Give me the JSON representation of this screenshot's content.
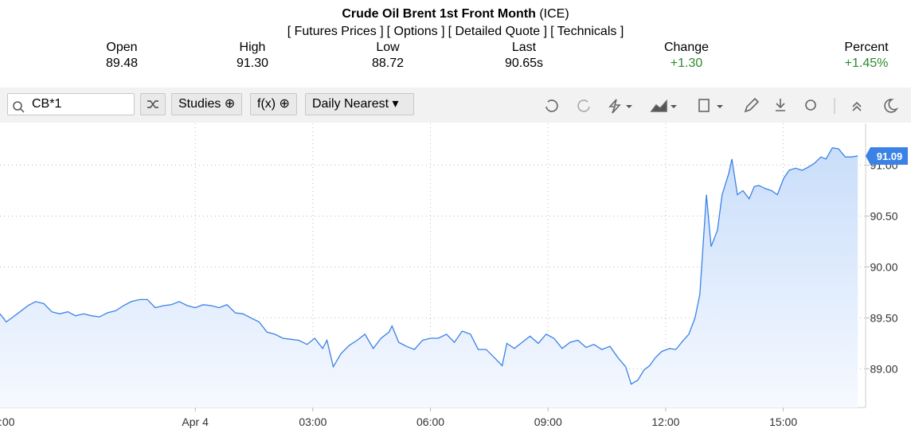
{
  "header": {
    "title": "Crude Oil Brent 1st Front Month",
    "exchange": "(ICE)",
    "links": [
      "[ Futures Prices ]",
      "[ Options ]",
      "[ Detailed Quote ]",
      "[ Technicals ]"
    ],
    "quote": [
      {
        "label": "Open",
        "value": "89.48"
      },
      {
        "label": "High",
        "value": "91.30"
      },
      {
        "label": "Low",
        "value": "88.72"
      },
      {
        "label": "Last",
        "value": "90.65s"
      },
      {
        "label": "Change",
        "value": "+1.30"
      },
      {
        "label": "Percent",
        "value": "+1.45%"
      }
    ]
  },
  "toolbar": {
    "symbol": "CB*1",
    "studies": "Studies",
    "fx": "f(x)",
    "period": "Daily Nearest"
  },
  "chart_data": {
    "type": "area",
    "color": "#3b82e6",
    "grid": true,
    "price_tag": 91.09,
    "xlim": [
      -4.98,
      17.1
    ],
    "ylim": [
      88.62,
      91.41
    ],
    "xticks": [
      {
        "value": -5,
        "label": ":00"
      },
      {
        "value": 0,
        "label": "Apr 4"
      },
      {
        "value": 3,
        "label": "03:00"
      },
      {
        "value": 6,
        "label": "06:00"
      },
      {
        "value": 9,
        "label": "09:00"
      },
      {
        "value": 12,
        "label": "12:00"
      },
      {
        "value": 15,
        "label": "15:00"
      }
    ],
    "yticks": [
      {
        "value": 89,
        "label": "89.00"
      },
      {
        "value": 89.5,
        "label": "89.50"
      },
      {
        "value": 90,
        "label": "90.00"
      },
      {
        "value": 90.5,
        "label": "90.50"
      },
      {
        "value": 91,
        "label": "91.00"
      }
    ],
    "x": [
      -4.98,
      -4.82,
      -4.68,
      -4.47,
      -4.27,
      -4.07,
      -3.86,
      -3.66,
      -3.46,
      -3.25,
      -3.05,
      -2.85,
      -2.64,
      -2.44,
      -2.24,
      -2.03,
      -1.83,
      -1.63,
      -1.42,
      -1.22,
      -1.02,
      -0.81,
      -0.61,
      -0.41,
      -0.2,
      0,
      0.2,
      0.41,
      0.61,
      0.81,
      1.02,
      1.22,
      1.42,
      1.63,
      1.83,
      2.03,
      2.24,
      2.44,
      2.64,
      2.85,
      3.05,
      3.25,
      3.36,
      3.52,
      3.72,
      3.93,
      4.13,
      4.33,
      4.54,
      4.74,
      4.94,
      5.02,
      5.19,
      5.39,
      5.59,
      5.8,
      6,
      6.2,
      6.41,
      6.61,
      6.81,
      7.02,
      7.22,
      7.42,
      7.63,
      7.83,
      7.95,
      8.14,
      8.34,
      8.54,
      8.75,
      8.95,
      9.15,
      9.36,
      9.56,
      9.76,
      9.97,
      10.17,
      10.37,
      10.58,
      10.78,
      10.98,
      11.12,
      11.29,
      11.45,
      11.59,
      11.74,
      11.9,
      12.1,
      12.26,
      12.43,
      12.59,
      12.75,
      12.87,
      13.04,
      13.16,
      13.32,
      13.44,
      13.61,
      13.69,
      13.83,
      13.97,
      14.13,
      14.26,
      14.38,
      14.54,
      14.7,
      14.85,
      15.01,
      15.15,
      15.31,
      15.48,
      15.64,
      15.8,
      15.96,
      16.09,
      16.25,
      16.41,
      16.58,
      16.74,
      16.9
    ],
    "values": [
      89.54,
      89.46,
      89.5,
      89.56,
      89.62,
      89.66,
      89.64,
      89.56,
      89.54,
      89.56,
      89.52,
      89.54,
      89.52,
      89.51,
      89.55,
      89.57,
      89.62,
      89.66,
      89.68,
      89.68,
      89.6,
      89.62,
      89.63,
      89.66,
      89.62,
      89.6,
      89.63,
      89.62,
      89.6,
      89.63,
      89.55,
      89.54,
      89.5,
      89.46,
      89.36,
      89.34,
      89.3,
      89.29,
      89.28,
      89.24,
      89.3,
      89.2,
      89.28,
      89.02,
      89.15,
      89.23,
      89.28,
      89.34,
      89.2,
      89.3,
      89.36,
      89.42,
      89.26,
      89.22,
      89.19,
      89.28,
      89.3,
      89.3,
      89.34,
      89.26,
      89.37,
      89.34,
      89.19,
      89.19,
      89.11,
      89.03,
      89.25,
      89.2,
      89.26,
      89.32,
      89.25,
      89.34,
      89.3,
      89.2,
      89.26,
      89.28,
      89.21,
      89.24,
      89.19,
      89.22,
      89.11,
      89.02,
      88.85,
      88.89,
      88.99,
      89.03,
      89.11,
      89.17,
      89.2,
      89.19,
      89.27,
      89.34,
      89.5,
      89.73,
      90.71,
      90.2,
      90.36,
      90.71,
      90.92,
      91.06,
      90.71,
      90.75,
      90.67,
      90.79,
      90.8,
      90.77,
      90.75,
      90.71,
      90.87,
      90.95,
      90.97,
      90.95,
      90.98,
      91.02,
      91.08,
      91.06,
      91.17,
      91.16,
      91.08,
      91.08,
      91.09
    ]
  }
}
